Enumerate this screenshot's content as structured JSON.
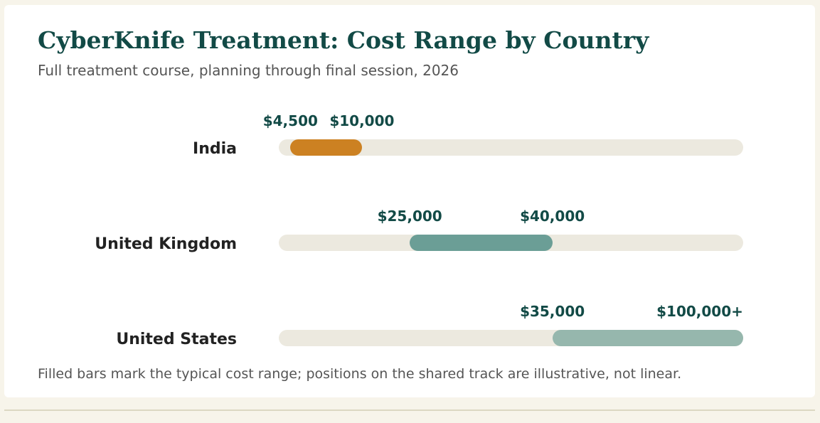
{
  "title": "CyberKnife Treatment: Cost Range by Country",
  "subtitle": "Full treatment course, planning through final session, 2026",
  "footnote": "Filled bars mark the typical cost range; positions on the shared track are illustrative, not linear.",
  "colors": {
    "title": "#124a46",
    "track": "#ece9df",
    "india": "#cc8122",
    "united_kingdom": "#6b9e96",
    "united_states": "#96b7ad"
  },
  "chart_data": {
    "type": "bar",
    "orientation": "horizontal-range",
    "title": "CyberKnife Treatment: Cost Range by Country",
    "subtitle": "Full treatment course, planning through final session, 2026",
    "xlabel": "",
    "ylabel": "",
    "scale": "illustrative, not linear",
    "categories": [
      "India",
      "United Kingdom",
      "United States"
    ],
    "series": [
      {
        "values": [
          {
            "low": 4500,
            "high": 10000,
            "low_label": "$4,500",
            "high_label": "$10,000",
            "track_start": 0.025,
            "track_end": 0.179,
            "color": "#cc8122"
          },
          {
            "low": 25000,
            "high": 40000,
            "low_label": "$25,000",
            "high_label": "$40,000",
            "track_start": 0.282,
            "track_end": 0.589,
            "color": "#6b9e96"
          },
          {
            "low": 35000,
            "high": 100000,
            "low_label": "$35,000",
            "high_label": "$100,000+",
            "track_start": 0.589,
            "track_end": 1.0,
            "color": "#96b7ad"
          }
        ]
      }
    ],
    "grid": false,
    "legend": "none"
  }
}
